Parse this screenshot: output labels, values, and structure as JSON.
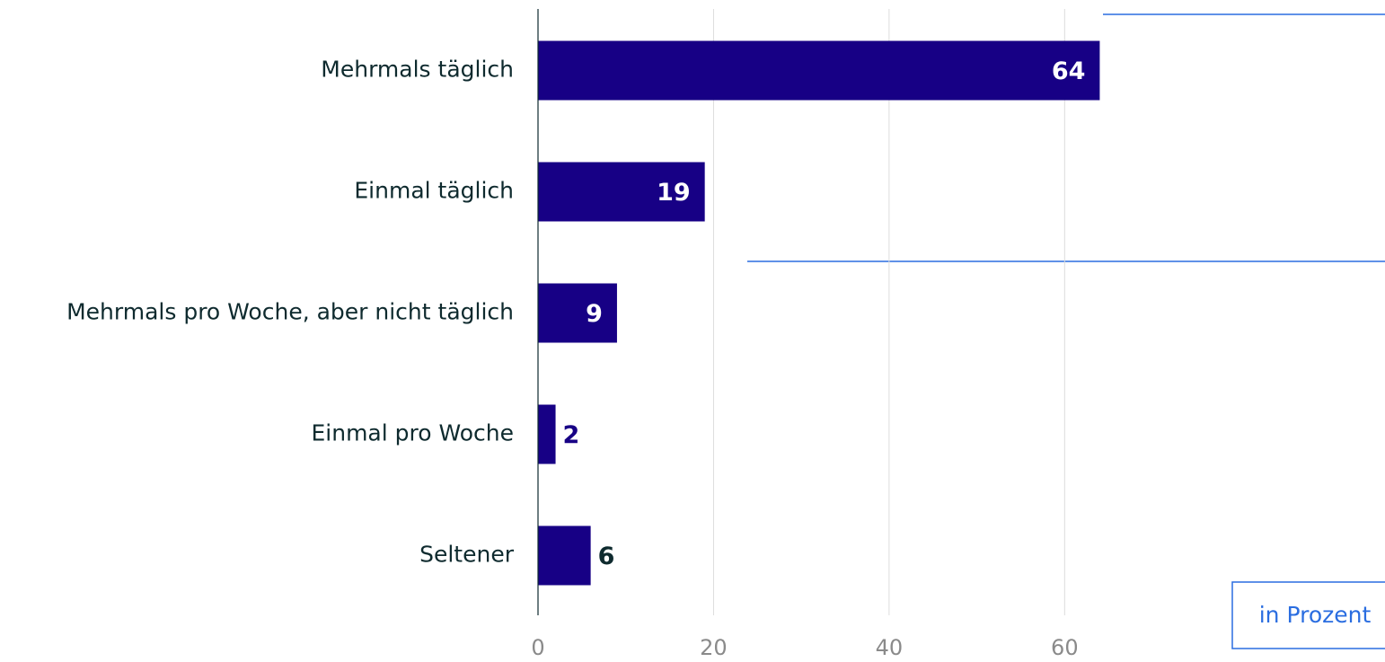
{
  "chart_data": {
    "type": "barh",
    "categories": [
      "Mehrmals täglich",
      "Einmal täglich",
      "Mehrmals pro Woche, aber nicht täglich",
      "Einmal pro Woche",
      "Seltener"
    ],
    "values": [
      64,
      19,
      9,
      2,
      6
    ],
    "color": "#170085",
    "value_label_colors": [
      "#ffffff",
      "#ffffff",
      "#ffffff",
      "#170085",
      "#0e2a2e"
    ],
    "xlim": [
      0,
      96.5
    ],
    "xticks": [
      0,
      20,
      40,
      60
    ],
    "grid": true,
    "annotation": "in Prozent"
  }
}
